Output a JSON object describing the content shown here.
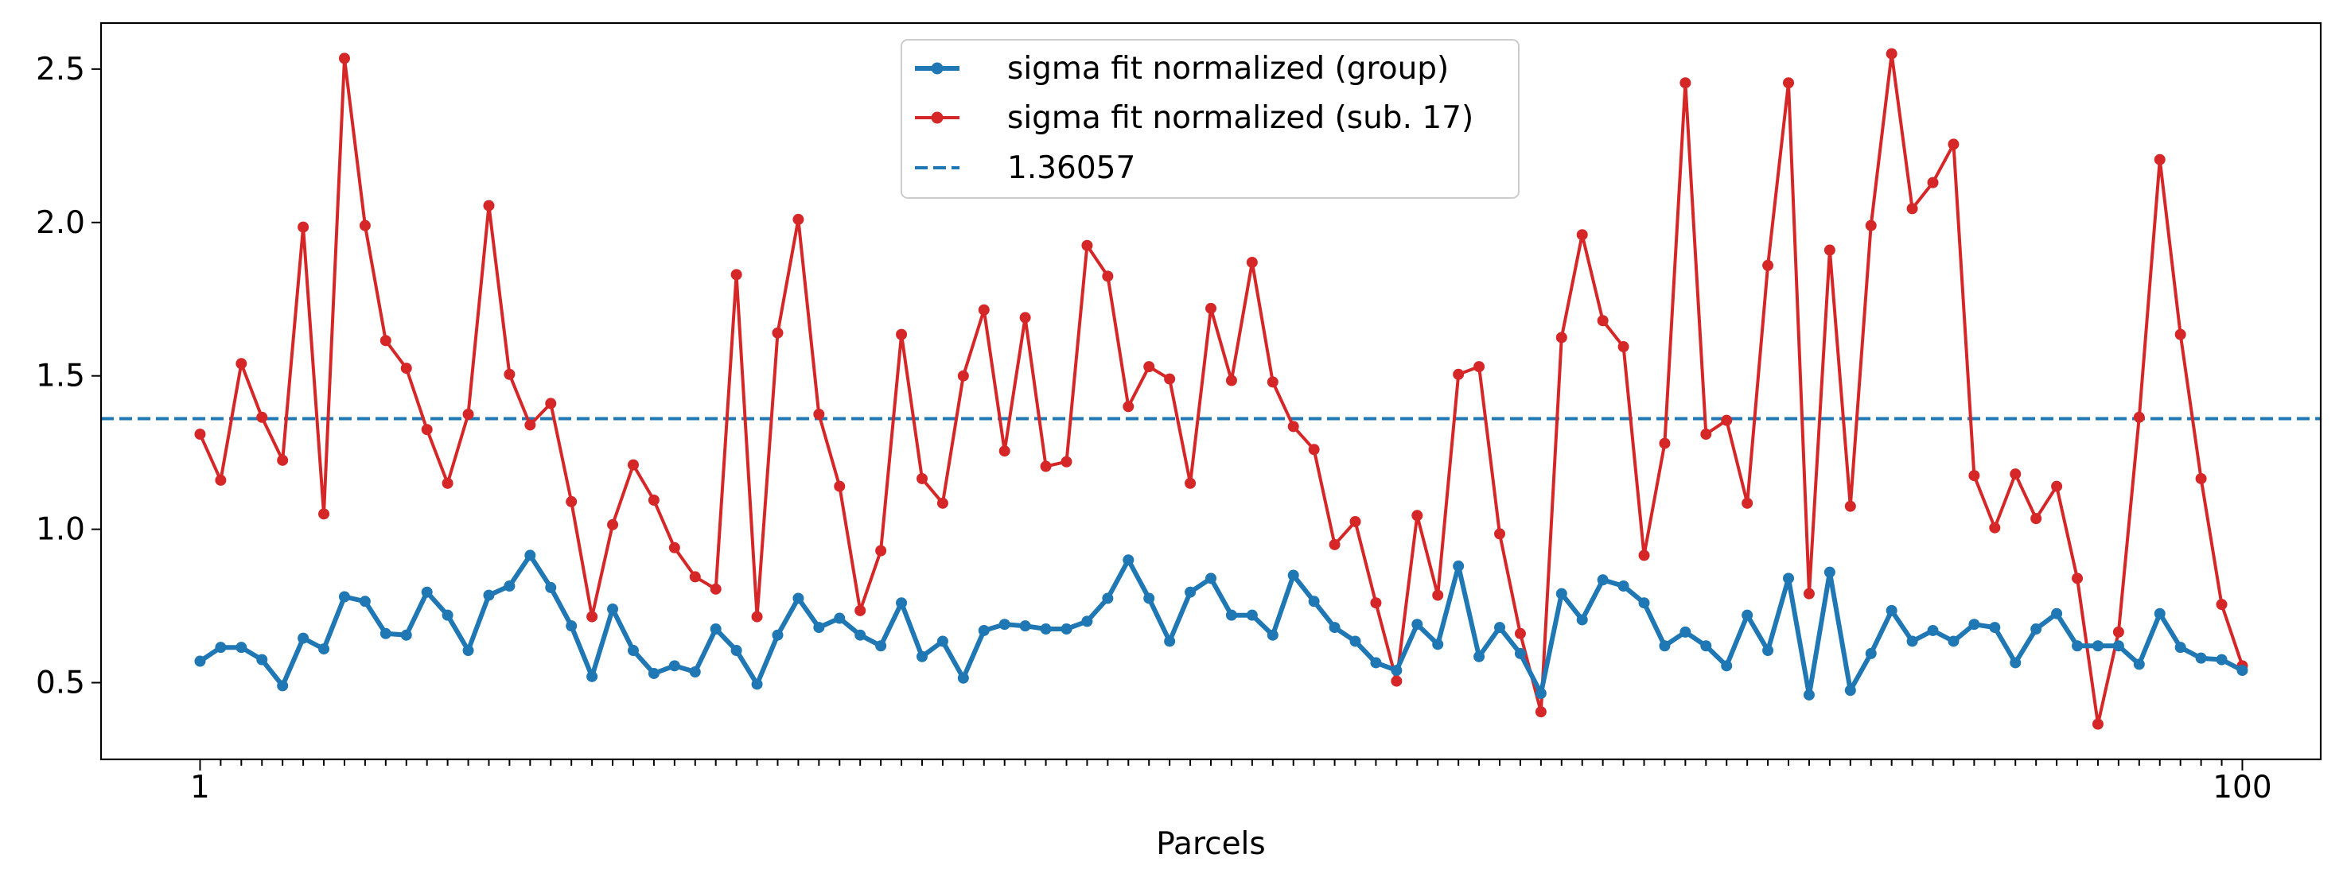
{
  "chart_data": {
    "type": "line",
    "title": "",
    "xlabel": "Parcels",
    "ylabel": "",
    "xlim": [
      -3.8,
      103.8
    ],
    "ylim": [
      0.25,
      2.65
    ],
    "x_major_ticks": [
      1,
      100
    ],
    "x_major_tick_labels": [
      "1",
      "100"
    ],
    "y_ticks": [
      0.5,
      1.0,
      1.5,
      2.0,
      2.5
    ],
    "y_tick_labels": [
      "0.5",
      "1.0",
      "1.5",
      "2.0",
      "2.5"
    ],
    "grid": false,
    "legend_position": "top-center",
    "series": [
      {
        "name": "sigma fit normalized (group)",
        "color": "#1f77b4",
        "marker": "circle",
        "style": "solid-thick",
        "x": [
          1,
          2,
          3,
          4,
          5,
          6,
          7,
          8,
          9,
          10,
          11,
          12,
          13,
          14,
          15,
          16,
          17,
          18,
          19,
          20,
          21,
          22,
          23,
          24,
          25,
          26,
          27,
          28,
          29,
          30,
          31,
          32,
          33,
          34,
          35,
          36,
          37,
          38,
          39,
          40,
          41,
          42,
          43,
          44,
          45,
          46,
          47,
          48,
          49,
          50,
          51,
          52,
          53,
          54,
          55,
          56,
          57,
          58,
          59,
          60,
          61,
          62,
          63,
          64,
          65,
          66,
          67,
          68,
          69,
          70,
          71,
          72,
          73,
          74,
          75,
          76,
          77,
          78,
          79,
          80,
          81,
          82,
          83,
          84,
          85,
          86,
          87,
          88,
          89,
          90,
          91,
          92,
          93,
          94,
          95,
          96,
          97,
          98,
          99,
          100
        ],
        "values": [
          0.57,
          0.615,
          0.615,
          0.575,
          0.49,
          0.645,
          0.61,
          0.78,
          0.765,
          0.66,
          0.655,
          0.795,
          0.72,
          0.605,
          0.785,
          0.815,
          0.915,
          0.81,
          0.685,
          0.52,
          0.74,
          0.605,
          0.53,
          0.555,
          0.535,
          0.675,
          0.605,
          0.495,
          0.655,
          0.775,
          0.68,
          0.71,
          0.655,
          0.62,
          0.76,
          0.585,
          0.635,
          0.515,
          0.67,
          0.69,
          0.685,
          0.675,
          0.675,
          0.7,
          0.775,
          0.9,
          0.775,
          0.635,
          0.795,
          0.84,
          0.72,
          0.72,
          0.655,
          0.85,
          0.765,
          0.68,
          0.635,
          0.565,
          0.54,
          0.69,
          0.625,
          0.88,
          0.585,
          0.68,
          0.595,
          0.465,
          0.79,
          0.705,
          0.835,
          0.815,
          0.76,
          0.62,
          0.665,
          0.62,
          0.555,
          0.72,
          0.605,
          0.84,
          0.46,
          0.86,
          0.475,
          0.595,
          0.735,
          0.635,
          0.67,
          0.635,
          0.69,
          0.68,
          0.565,
          0.675,
          0.725,
          0.62,
          0.62,
          0.62,
          0.56,
          0.725,
          0.615,
          0.58,
          0.575,
          0.54
        ]
      },
      {
        "name": "sigma fit normalized (sub. 17)",
        "color": "#d62728",
        "marker": "circle",
        "style": "solid",
        "x": [
          1,
          2,
          3,
          4,
          5,
          6,
          7,
          8,
          9,
          10,
          11,
          12,
          13,
          14,
          15,
          16,
          17,
          18,
          19,
          20,
          21,
          22,
          23,
          24,
          25,
          26,
          27,
          28,
          29,
          30,
          31,
          32,
          33,
          34,
          35,
          36,
          37,
          38,
          39,
          40,
          41,
          42,
          43,
          44,
          45,
          46,
          47,
          48,
          49,
          50,
          51,
          52,
          53,
          54,
          55,
          56,
          57,
          58,
          59,
          60,
          61,
          62,
          63,
          64,
          65,
          66,
          67,
          68,
          69,
          70,
          71,
          72,
          73,
          74,
          75,
          76,
          77,
          78,
          79,
          80,
          81,
          82,
          83,
          84,
          85,
          86,
          87,
          88,
          89,
          90,
          91,
          92,
          93,
          94,
          95,
          96,
          97,
          98,
          99,
          100
        ],
        "values": [
          1.31,
          1.16,
          1.54,
          1.365,
          1.225,
          1.985,
          1.05,
          2.535,
          1.99,
          1.615,
          1.525,
          1.325,
          1.15,
          1.375,
          2.055,
          1.505,
          1.34,
          1.41,
          1.09,
          0.715,
          1.015,
          1.21,
          1.095,
          0.94,
          0.845,
          0.805,
          1.83,
          0.715,
          1.64,
          2.01,
          1.375,
          1.14,
          0.735,
          0.93,
          1.635,
          1.165,
          1.085,
          1.5,
          1.715,
          1.255,
          1.69,
          1.205,
          1.22,
          1.925,
          1.825,
          1.4,
          1.53,
          1.49,
          1.15,
          1.72,
          1.485,
          1.87,
          1.48,
          1.335,
          1.26,
          0.95,
          1.025,
          0.76,
          0.505,
          1.045,
          0.785,
          1.505,
          1.53,
          0.985,
          0.66,
          0.405,
          1.625,
          1.96,
          1.68,
          1.595,
          0.915,
          1.28,
          2.455,
          1.31,
          1.355,
          1.085,
          1.86,
          2.455,
          0.79,
          1.91,
          1.075,
          1.99,
          2.55,
          2.045,
          2.13,
          2.255,
          1.175,
          1.005,
          1.18,
          1.035,
          1.14,
          0.84,
          0.365,
          0.665,
          1.365,
          2.205,
          1.635,
          1.165,
          0.755,
          0.555
        ]
      },
      {
        "name": "1.36057",
        "color": "#1f77b4",
        "style": "dashed",
        "value": 1.36057
      }
    ]
  }
}
